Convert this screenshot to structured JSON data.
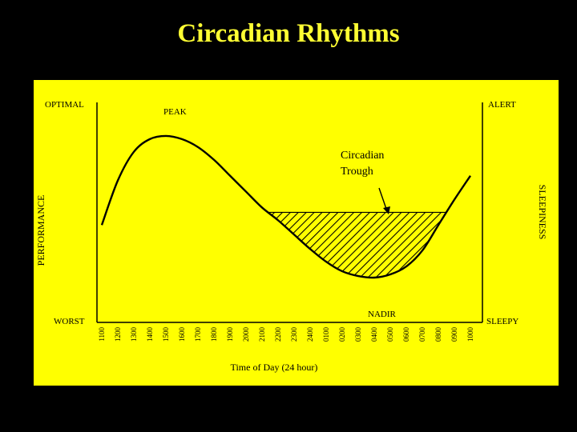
{
  "slide": {
    "title": "Circadian Rhythms"
  },
  "colors": {
    "background": "#000000",
    "title": "#ffff33",
    "panel": "#ffff00",
    "ink": "#000000"
  },
  "chart_data": {
    "type": "line",
    "xlabel": "Time of Day (24 hour)",
    "ylabel_left": "PERFORMANCE",
    "ylabel_right": "SLEEPINESS",
    "left_axis_labels": {
      "top": "OPTIMAL",
      "bottom": "WORST"
    },
    "right_axis_labels": {
      "top": "ALERT",
      "bottom": "SLEEPY"
    },
    "x_ticks": [
      "1100",
      "1200",
      "1300",
      "1400",
      "1500",
      "1600",
      "1700",
      "1800",
      "1900",
      "2000",
      "2100",
      "2200",
      "2300",
      "2400",
      "0100",
      "0200",
      "0300",
      "0400",
      "0500",
      "0600",
      "0700",
      "0800",
      "0900",
      "1000"
    ],
    "ylim": [
      0,
      1
    ],
    "series": [
      {
        "x": [
          "1100",
          "1200",
          "1300",
          "1400",
          "1500",
          "1600",
          "1700",
          "1800",
          "1900",
          "2000",
          "2100",
          "2200",
          "2300",
          "2400",
          "0100",
          "0200",
          "0300",
          "0400",
          "0500",
          "0600",
          "0700",
          "0800",
          "0900",
          "1000"
        ],
        "values": [
          0.34,
          0.62,
          0.8,
          0.88,
          0.9,
          0.88,
          0.83,
          0.75,
          0.65,
          0.55,
          0.45,
          0.37,
          0.28,
          0.19,
          0.11,
          0.05,
          0.02,
          0.01,
          0.03,
          0.08,
          0.18,
          0.34,
          0.5,
          0.65
        ]
      }
    ],
    "shaded_region": {
      "label": "Circadian Trough",
      "threshold": 0.42,
      "pattern": "diagonal-hatch"
    },
    "annotations": [
      {
        "text": "PEAK",
        "x": "1500",
        "y": 0.9
      },
      {
        "text": "NADIR",
        "x": "0400",
        "y": 0.01
      },
      {
        "text": "Circadian Trough",
        "x": "0300",
        "y": 0.45,
        "arrow": true
      }
    ]
  }
}
